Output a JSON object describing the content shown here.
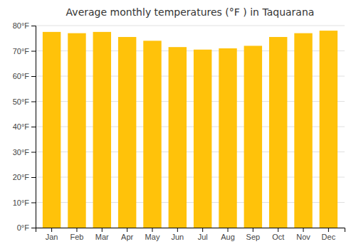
{
  "chart_data": {
    "type": "bar",
    "title": "Average monthly temperatures (°F ) in Taquarana",
    "categories": [
      "Jan",
      "Feb",
      "Mar",
      "Apr",
      "May",
      "Jun",
      "Jul",
      "Aug",
      "Sep",
      "Oct",
      "Nov",
      "Dec"
    ],
    "values": [
      77.5,
      77.0,
      77.5,
      75.5,
      74.0,
      71.5,
      70.5,
      71.0,
      72.0,
      75.5,
      77.0,
      78.0
    ],
    "color": "#FFC20A",
    "ylim": [
      0,
      80
    ],
    "yticks": [
      {
        "value": 0,
        "label": "0°F"
      },
      {
        "value": 10,
        "label": "10°F"
      },
      {
        "value": 20,
        "label": "20°F"
      },
      {
        "value": 30,
        "label": "30°F"
      },
      {
        "value": 40,
        "label": "40°F"
      },
      {
        "value": 50,
        "label": "50°F"
      },
      {
        "value": 60,
        "label": "60°F"
      },
      {
        "value": 70,
        "label": "70°F"
      },
      {
        "value": 80,
        "label": "80°F"
      }
    ],
    "grid": true
  }
}
